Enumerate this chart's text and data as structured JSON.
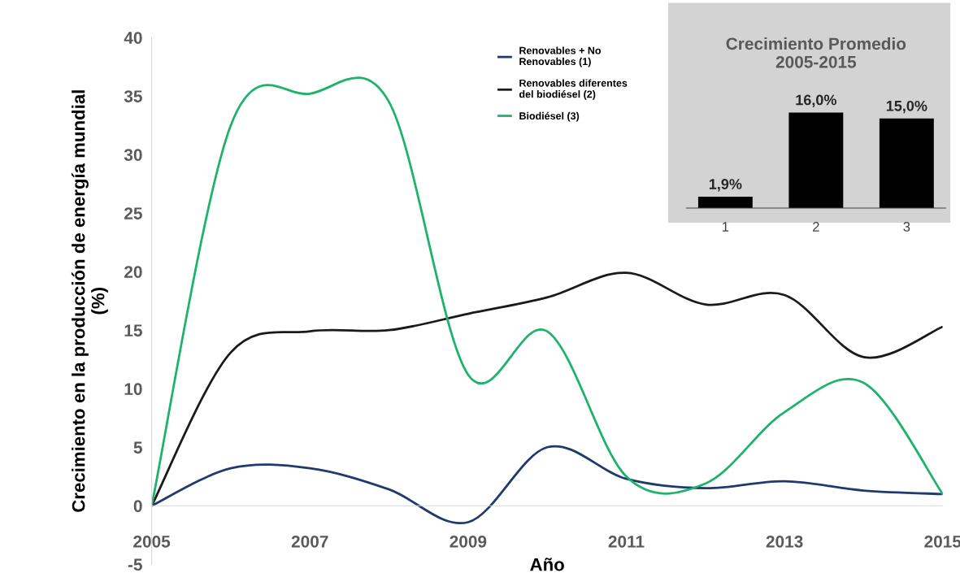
{
  "chart_data": [
    {
      "type": "line",
      "xlabel": "Año",
      "ylabel": "Crecimiento en la producción de energía mundial\n(%)",
      "x": [
        2005,
        2006,
        2007,
        2008,
        2009,
        2010,
        2011,
        2012,
        2013,
        2014,
        2015
      ],
      "series": [
        {
          "name": "Renovables + No\nRenovables (1)",
          "color": "#1f3a6e",
          "values": [
            0,
            3.2,
            3.2,
            1.4,
            -1.4,
            5.0,
            2.3,
            1.5,
            2.1,
            1.3,
            1.0
          ]
        },
        {
          "name": "Renovables diferentes\ndel biodiésel (2)",
          "color": "#1a1a1a",
          "values": [
            0,
            13.1,
            14.9,
            15.0,
            16.4,
            17.8,
            19.9,
            17.2,
            18.0,
            12.7,
            15.3
          ]
        },
        {
          "name": "Biodiésel (3)",
          "color": "#1db36b",
          "values": [
            0,
            32.5,
            35.2,
            34.5,
            11.2,
            14.9,
            2.5,
            1.9,
            8.0,
            10.5,
            1.0
          ]
        }
      ],
      "xlim": [
        2005,
        2015
      ],
      "xticks": [
        2005,
        2007,
        2009,
        2011,
        2013,
        2015
      ],
      "ylim": [
        -5,
        40
      ],
      "yticks": [
        -5,
        0,
        5,
        10,
        15,
        20,
        25,
        30,
        35,
        40
      ],
      "legend": "top",
      "grid": false
    },
    {
      "type": "bar",
      "title": "Crecimiento Promedio\n2005-2015",
      "categories": [
        "1",
        "2",
        "3"
      ],
      "values": [
        1.9,
        16.0,
        15.0
      ],
      "color": "#000000",
      "value_labels": [
        "1,9%",
        "16,0%",
        "15,0%"
      ],
      "tick_labels": "x"
    }
  ]
}
